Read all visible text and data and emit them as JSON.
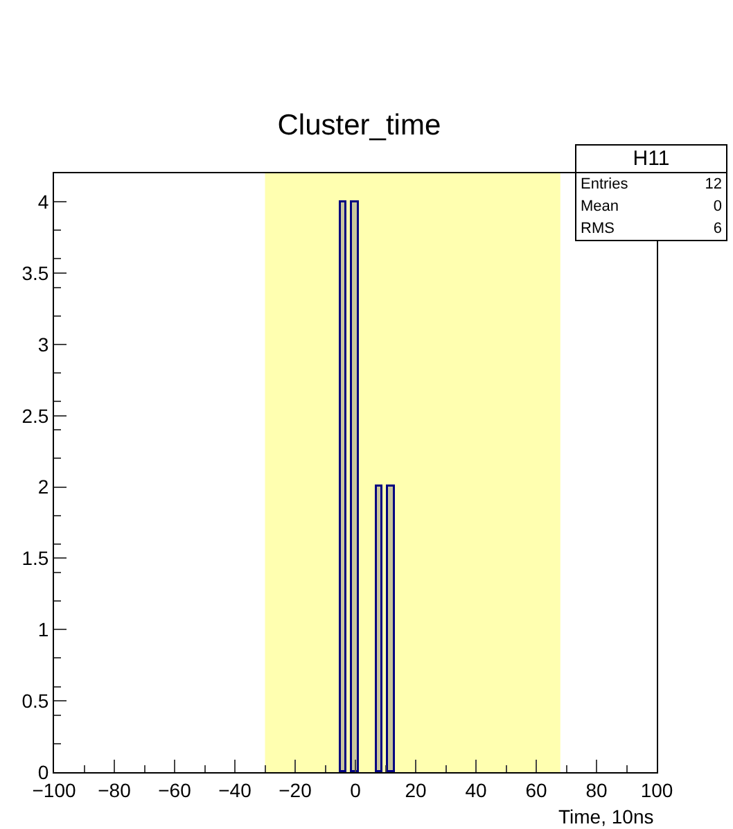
{
  "chart_data": {
    "type": "histogram",
    "title": "Cluster_time",
    "xlabel": "Time, 10ns",
    "bins": [
      -5,
      -3,
      -1,
      1,
      3,
      5,
      7,
      9,
      11,
      13
    ],
    "values": [
      4,
      0,
      4,
      0,
      0,
      0,
      2,
      0,
      2
    ],
    "color": "#c9c69c",
    "xlim": [
      -100,
      100
    ],
    "xticks": [
      {
        "value": -100,
        "label": "−100"
      },
      {
        "value": -80,
        "label": "−80"
      },
      {
        "value": -60,
        "label": "−60"
      },
      {
        "value": -40,
        "label": "−40"
      },
      {
        "value": -20,
        "label": "−20"
      },
      0,
      20,
      40,
      60,
      80,
      100
    ],
    "ylim": [
      0,
      4.2
    ],
    "yticks": [
      0,
      0.5,
      1,
      1.5,
      2,
      2.5,
      3,
      3.5,
      4
    ],
    "bands": [
      {
        "axis": "x",
        "from": -30,
        "to": 68,
        "color": "#ffffb0"
      }
    ],
    "annotations": [
      "H11",
      "Entries 12",
      "Mean 0",
      "RMS 6"
    ],
    "grid": false
  }
}
